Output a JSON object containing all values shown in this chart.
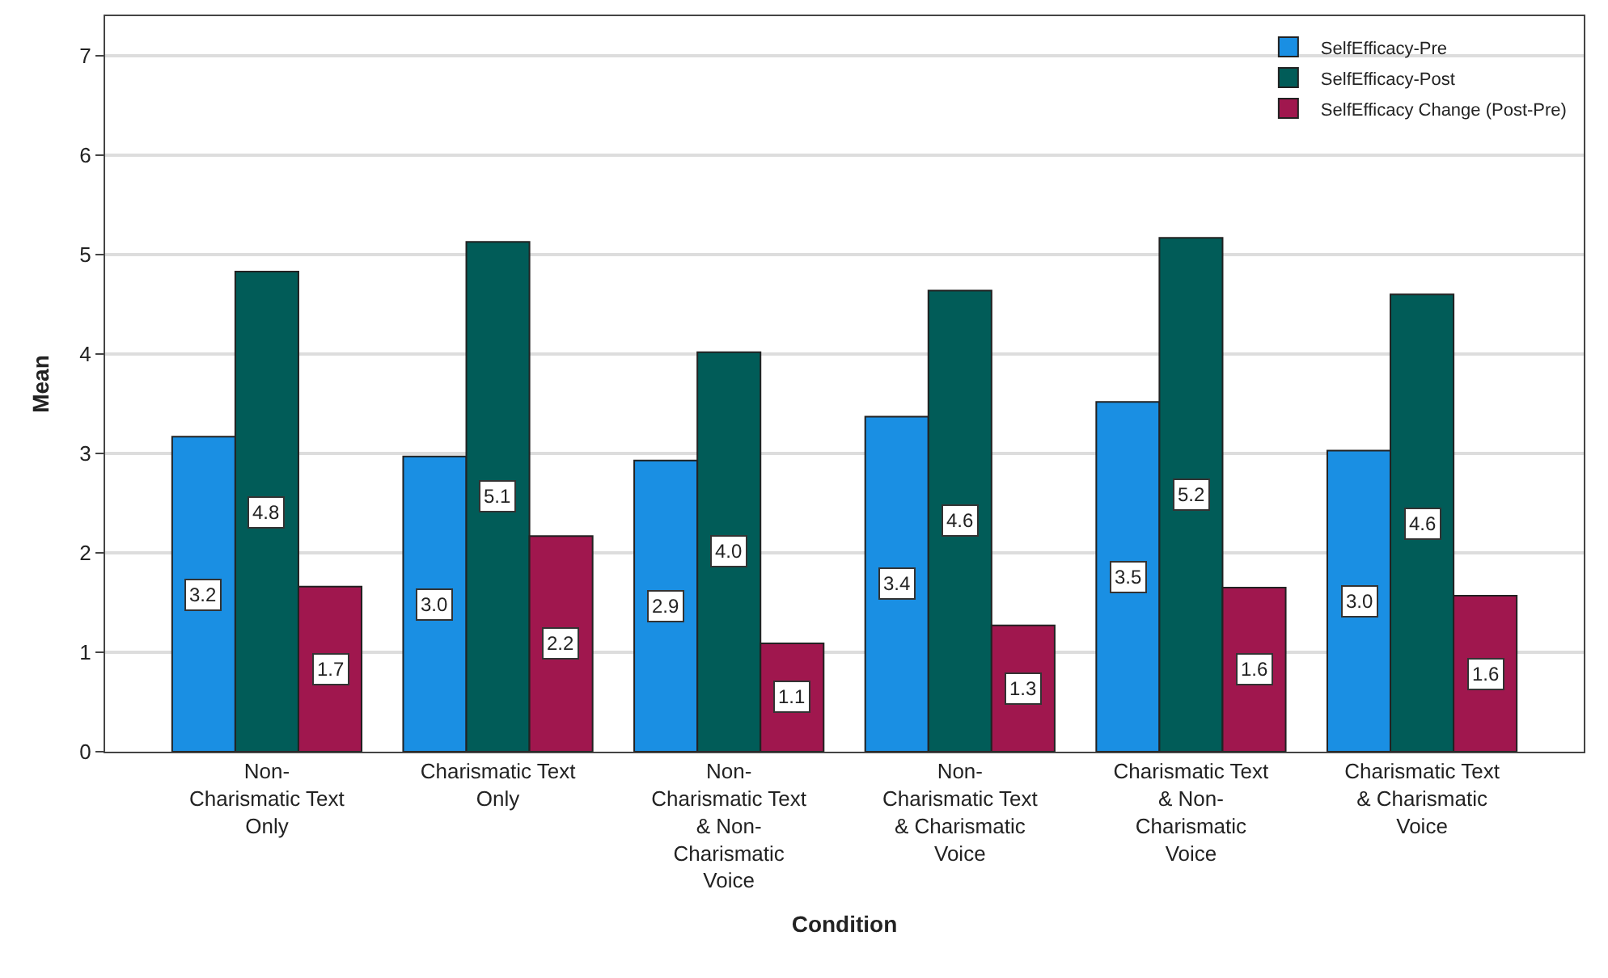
{
  "chart_data": {
    "type": "bar",
    "xlabel": "Condition",
    "ylabel": "Mean",
    "categories": [
      "Non-\nCharismatic Text\nOnly",
      "Charismatic Text\nOnly",
      "Non-\nCharismatic Text\n& Non-\nCharismatic\nVoice",
      "Non-\nCharismatic Text\n& Charismatic\nVoice",
      "Charismatic Text\n& Non-\nCharismatic\nVoice",
      "Charismatic Text\n& Charismatic\nVoice"
    ],
    "series": [
      {
        "name": "SelfEfficacy-Pre",
        "color": "#1a8fe3",
        "values": [
          3.17,
          2.97,
          2.93,
          3.37,
          3.52,
          3.03
        ],
        "value_labels": [
          "3.2",
          "3.0",
          "2.9",
          "3.4",
          "3.5",
          "3.0"
        ]
      },
      {
        "name": "SelfEfficacy-Post",
        "color": "#015c58",
        "values": [
          4.83,
          5.13,
          4.02,
          4.64,
          5.17,
          4.6
        ],
        "value_labels": [
          "4.8",
          "5.1",
          "4.0",
          "4.6",
          "5.2",
          "4.6"
        ]
      },
      {
        "name": "SelfEfficacy Change (Post-Pre)",
        "color": "#a0174e",
        "values": [
          1.66,
          2.17,
          1.09,
          1.27,
          1.65,
          1.57
        ],
        "value_labels": [
          "1.7",
          "2.2",
          "1.1",
          "1.3",
          "1.6",
          "1.6"
        ]
      }
    ],
    "ylim": [
      0,
      7.4
    ],
    "yticks": [
      0,
      1,
      2,
      3,
      4,
      5,
      6,
      7
    ],
    "grid": "y",
    "legend": "top right"
  }
}
